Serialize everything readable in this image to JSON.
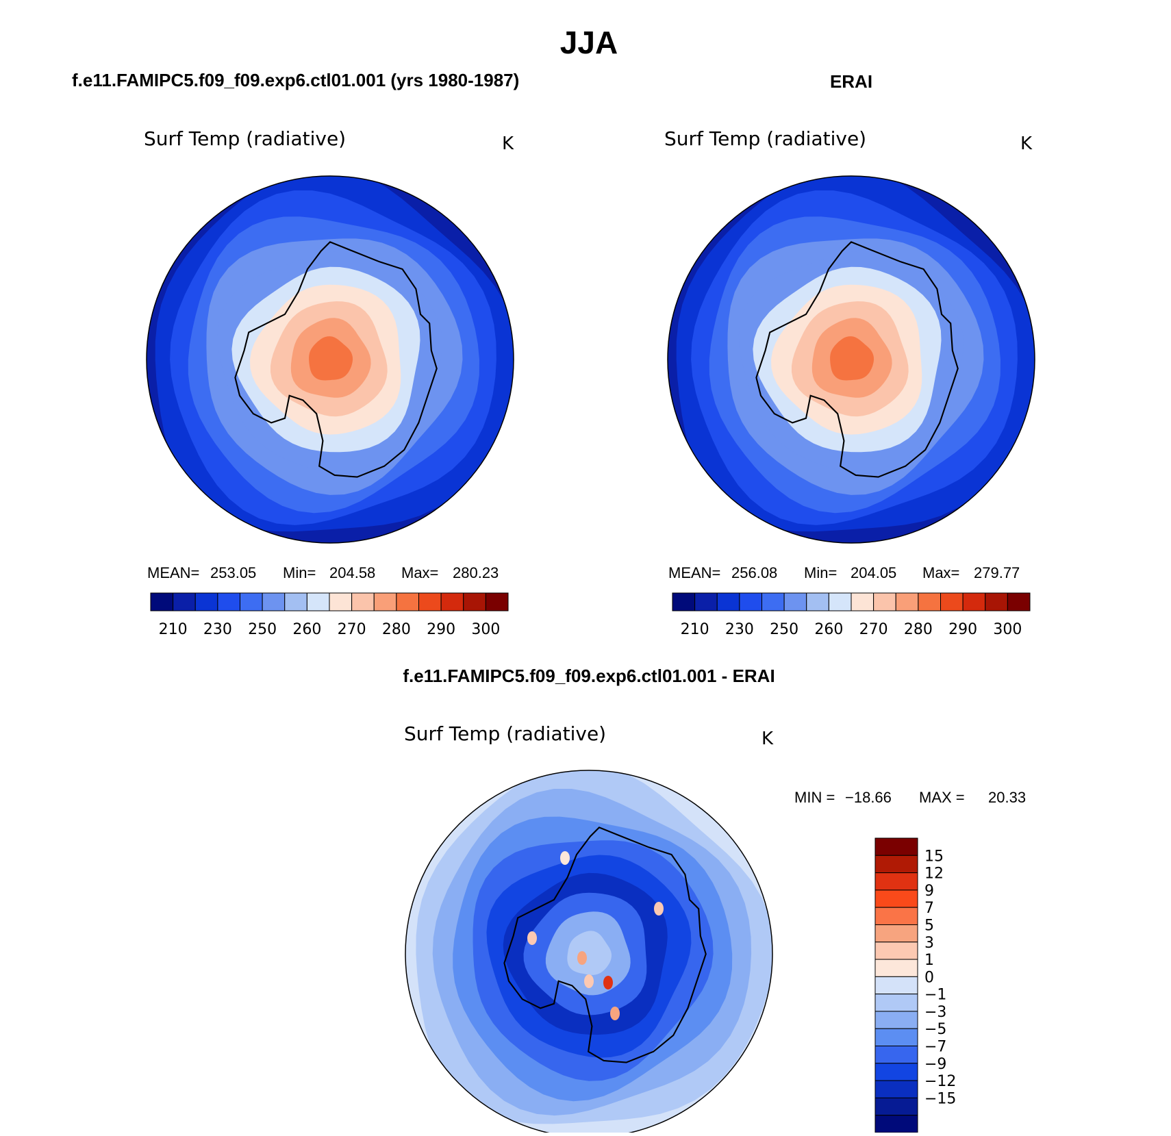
{
  "figure": {
    "title": "JJA",
    "units": "K"
  },
  "chart_data": [
    {
      "type": "heatmap",
      "panel_title": "f.e11.FAMIPC5.f09_f09.exp6.ctl01.001 (yrs 1980-1987)",
      "variable": "Surf Temp (radiative)",
      "units": "K",
      "projection": "south-polar stereographic",
      "stats": {
        "mean_label": "MEAN=",
        "mean": "253.05",
        "min_label": "Min=",
        "min": "204.58",
        "max_label": "Max=",
        "max": "280.23"
      },
      "ring_values": [
        205,
        215,
        225,
        232,
        240,
        248,
        256,
        263,
        268,
        272,
        276
      ]
    },
    {
      "type": "heatmap",
      "panel_title": "ERAI",
      "variable": "Surf Temp (radiative)",
      "units": "K",
      "projection": "south-polar stereographic",
      "stats": {
        "mean_label": "MEAN=",
        "mean": "256.08",
        "min_label": "Min=",
        "min": "204.05",
        "max_label": "Max=",
        "max": "279.77"
      },
      "ring_values": [
        205,
        215,
        225,
        232,
        240,
        248,
        256,
        263,
        268,
        272,
        276
      ]
    },
    {
      "type": "heatmap",
      "panel_title": "f.e11.FAMIPC5.f09_f09.exp6.ctl01.001 - ERAI",
      "variable": "Surf Temp (radiative)",
      "units": "K",
      "projection": "south-polar stereographic",
      "stats": {
        "min_label": "MIN =",
        "min": "−18.66",
        "max_label": "MAX =",
        "max": "20.33"
      },
      "ring_values": [
        0.5,
        -0.5,
        -2,
        -4,
        -6,
        -8,
        -10,
        -6,
        -3,
        -1
      ]
    }
  ],
  "abs_colorbar": {
    "colors": [
      "#000a7a",
      "#0a1fa8",
      "#0a34d4",
      "#1f4ded",
      "#3d6df2",
      "#6d93f0",
      "#a3bff2",
      "#d5e5fa",
      "#fde4d6",
      "#fbc4ab",
      "#f99f78",
      "#f57340",
      "#ec4a1c",
      "#d42a0d",
      "#a81505",
      "#7a0000"
    ],
    "labels": [
      "210",
      "230",
      "250",
      "260",
      "270",
      "280",
      "290",
      "300"
    ]
  },
  "diff_colorbar": {
    "colors": [
      "#7a0000",
      "#b01a05",
      "#e03212",
      "#fa4a1a",
      "#fa7447",
      "#f7a47f",
      "#fcc9b2",
      "#fde7da",
      "#d4e2f9",
      "#b0c9f6",
      "#8aaef3",
      "#5c8ef2",
      "#3766ee",
      "#1245e2",
      "#0a2fc0",
      "#061b94",
      "#000a7a"
    ],
    "labels": [
      "15",
      "12",
      "9",
      "7",
      "5",
      "3",
      "1",
      "0",
      "−1",
      "−3",
      "−5",
      "−7",
      "−9",
      "−12",
      "−15"
    ]
  }
}
